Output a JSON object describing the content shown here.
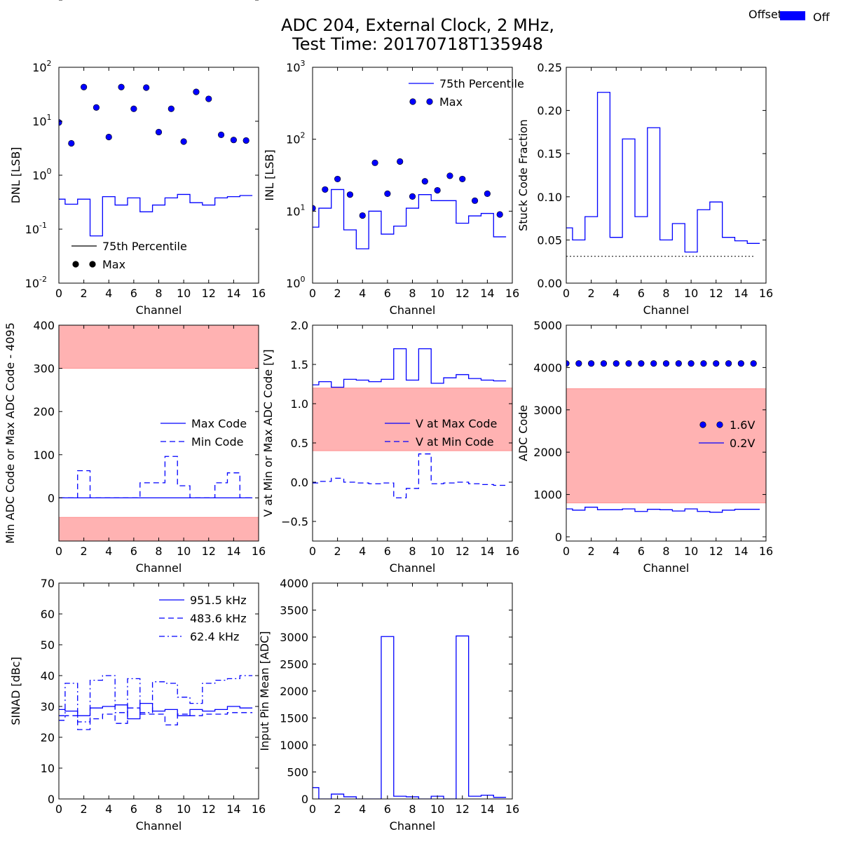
{
  "figure": {
    "title_line1": "ADC 204, External Clock, 2 MHz,",
    "title_line2": "Test Time: 20170718T135948",
    "top_legend": {
      "title": "Offset",
      "label": "Off",
      "color": "#0000ff"
    }
  },
  "chart_data": [
    {
      "id": "dnl",
      "type": "line",
      "xlabel": "Channel",
      "ylabel": "DNL [LSB]",
      "yscale": "log",
      "xlim": [
        0,
        16
      ],
      "ylim": [
        0.01,
        100
      ],
      "xticks": [
        "0",
        "2",
        "4",
        "6",
        "8",
        "10",
        "12",
        "14",
        "16"
      ],
      "yticks": [
        {
          "base": "10",
          "exp": "-2"
        },
        {
          "base": "10",
          "exp": "-1"
        },
        {
          "base": "10",
          "exp": "0"
        },
        {
          "base": "10",
          "exp": "1"
        },
        {
          "base": "10",
          "exp": "2"
        }
      ],
      "legend": {
        "position": "lower-left"
      },
      "series": [
        {
          "name": "75th Percentile",
          "style": "step",
          "dash": "solid",
          "legend_color": "#000000",
          "x": [
            0,
            1,
            2,
            3,
            4,
            5,
            6,
            7,
            8,
            9,
            10,
            11,
            12,
            13,
            14,
            15
          ],
          "values": [
            0.36,
            0.29,
            0.36,
            0.075,
            0.4,
            0.28,
            0.38,
            0.21,
            0.28,
            0.38,
            0.44,
            0.31,
            0.28,
            0.38,
            0.4,
            0.42
          ]
        },
        {
          "name": "Max",
          "style": "points",
          "legend_color": "#000000",
          "x": [
            0,
            1,
            2,
            3,
            4,
            5,
            6,
            7,
            8,
            9,
            10,
            11,
            12,
            13,
            14,
            15
          ],
          "values": [
            9.5,
            3.9,
            43,
            18,
            5.1,
            43,
            17,
            42,
            6.3,
            17,
            4.2,
            35,
            26,
            5.6,
            4.5,
            4.4
          ]
        }
      ]
    },
    {
      "id": "inl",
      "type": "line",
      "xlabel": "Channel",
      "ylabel": "INL [LSB]",
      "yscale": "log",
      "xlim": [
        0,
        16
      ],
      "ylim": [
        1,
        1000
      ],
      "xticks": [
        "0",
        "2",
        "4",
        "6",
        "8",
        "10",
        "12",
        "14",
        "16"
      ],
      "yticks": [
        {
          "base": "10",
          "exp": "0"
        },
        {
          "base": "10",
          "exp": "1"
        },
        {
          "base": "10",
          "exp": "2"
        },
        {
          "base": "10",
          "exp": "3"
        }
      ],
      "legend": {
        "position": "upper-right"
      },
      "series": [
        {
          "name": "75th Percentile",
          "style": "step",
          "dash": "solid",
          "x": [
            0,
            1,
            2,
            3,
            4,
            5,
            6,
            7,
            8,
            9,
            10,
            11,
            12,
            13,
            14,
            15
          ],
          "values": [
            6,
            11,
            20,
            5.5,
            3,
            10,
            4.8,
            6.2,
            11,
            17,
            14,
            14,
            6.8,
            8.6,
            9.3,
            4.4
          ]
        },
        {
          "name": "Max",
          "style": "points",
          "x": [
            0,
            1,
            2,
            3,
            4,
            5,
            6,
            7,
            8,
            9,
            10,
            11,
            12,
            13,
            14,
            15
          ],
          "values": [
            11,
            20,
            28,
            17,
            8.7,
            47,
            17.5,
            49,
            16,
            26,
            19.5,
            31,
            28,
            14,
            17.5,
            9
          ]
        }
      ]
    },
    {
      "id": "stuck",
      "type": "line",
      "xlabel": "Channel",
      "ylabel": "Stuck Code Fraction",
      "yscale": "linear",
      "xlim": [
        0,
        16
      ],
      "ylim": [
        0,
        0.25
      ],
      "xticks": [
        "0",
        "2",
        "4",
        "6",
        "8",
        "10",
        "12",
        "14",
        "16"
      ],
      "yticks": [
        "0.00",
        "0.05",
        "0.10",
        "0.15",
        "0.20",
        "0.25"
      ],
      "series": [
        {
          "style": "step",
          "dash": "solid",
          "x": [
            0,
            1,
            2,
            3,
            4,
            5,
            6,
            7,
            8,
            9,
            10,
            11,
            12,
            13,
            14,
            15
          ],
          "values": [
            0.064,
            0.05,
            0.077,
            0.221,
            0.053,
            0.167,
            0.077,
            0.18,
            0.05,
            0.069,
            0.036,
            0.085,
            0.094,
            0.053,
            0.049,
            0.046
          ]
        },
        {
          "style": "hline",
          "dash": "dotted",
          "y": 0.031,
          "x": [
            0,
            15
          ]
        }
      ]
    },
    {
      "id": "minmax",
      "type": "line",
      "xlabel": "Channel",
      "ylabel": "Min ADC Code or Max ADC Code - 4095",
      "yscale": "linear",
      "xlim": [
        0,
        16
      ],
      "ylim": [
        -100,
        400
      ],
      "xticks": [
        "0",
        "2",
        "4",
        "6",
        "8",
        "10",
        "12",
        "14",
        "16"
      ],
      "yticks": [
        "−100",
        "0",
        "100",
        "200",
        "300",
        "400"
      ],
      "bands": [
        [
          300,
          400
        ],
        [
          -100,
          -45
        ]
      ],
      "legend": {
        "position": "center-right"
      },
      "series": [
        {
          "name": "Max Code",
          "style": "step",
          "dash": "solid",
          "x": [
            0,
            1,
            2,
            3,
            4,
            5,
            6,
            7,
            8,
            9,
            10,
            11,
            12,
            13,
            14,
            15
          ],
          "values": [
            0,
            0,
            0,
            0,
            0,
            0,
            0,
            0,
            0,
            0,
            0,
            0,
            0,
            0,
            0,
            0
          ]
        },
        {
          "name": "Min Code",
          "style": "step",
          "dash": "dashed",
          "x": [
            0,
            1,
            2,
            3,
            4,
            5,
            6,
            7,
            8,
            9,
            10,
            11,
            12,
            13,
            14,
            15
          ],
          "values": [
            0,
            0,
            63,
            0,
            0,
            0,
            0,
            35,
            35,
            96,
            28,
            0,
            0,
            35,
            58,
            0
          ]
        }
      ]
    },
    {
      "id": "voltage",
      "type": "line",
      "xlabel": "Channel",
      "ylabel": "V at Min or Max ADC Code [V]",
      "yscale": "linear",
      "xlim": [
        0,
        16
      ],
      "ylim": [
        -0.75,
        2.0
      ],
      "xticks": [
        "0",
        "2",
        "4",
        "6",
        "8",
        "10",
        "12",
        "14",
        "16"
      ],
      "yticks": [
        "−0.5",
        "0.0",
        "0.5",
        "1.0",
        "1.5",
        "2.0"
      ],
      "yticks_values": [
        -0.5,
        0,
        0.5,
        1,
        1.5,
        2
      ],
      "bands": [
        [
          0.4,
          1.2
        ]
      ],
      "legend": {
        "position": "center-right"
      },
      "series": [
        {
          "name": "V at Max Code",
          "style": "step",
          "dash": "solid",
          "x": [
            0,
            1,
            2,
            3,
            4,
            5,
            6,
            7,
            8,
            9,
            10,
            11,
            12,
            13,
            14,
            15
          ],
          "values": [
            1.24,
            1.28,
            1.21,
            1.31,
            1.3,
            1.28,
            1.31,
            1.7,
            1.3,
            1.7,
            1.26,
            1.33,
            1.37,
            1.32,
            1.3,
            1.29
          ]
        },
        {
          "name": "V at Min Code",
          "style": "step",
          "dash": "dashed",
          "x": [
            0,
            1,
            2,
            3,
            4,
            5,
            6,
            7,
            8,
            9,
            10,
            11,
            12,
            13,
            14,
            15
          ],
          "values": [
            -0.01,
            0.01,
            0.05,
            0.0,
            -0.01,
            -0.02,
            -0.01,
            -0.2,
            -0.08,
            0.36,
            -0.02,
            -0.01,
            0.0,
            -0.02,
            -0.03,
            -0.04
          ]
        }
      ]
    },
    {
      "id": "adccode",
      "type": "line",
      "xlabel": "Channel",
      "ylabel": "ADC Code",
      "yscale": "linear",
      "xlim": [
        0,
        16
      ],
      "ylim": [
        -100,
        5000
      ],
      "xticks": [
        "0",
        "2",
        "4",
        "6",
        "8",
        "10",
        "12",
        "14",
        "16"
      ],
      "yticks": [
        "0",
        "1000",
        "2000",
        "3000",
        "4000",
        "5000"
      ],
      "yticks_values": [
        0,
        1000,
        2000,
        3000,
        4000,
        5000
      ],
      "bands": [
        [
          800,
          3500
        ]
      ],
      "legend": {
        "position": "center-right"
      },
      "series": [
        {
          "name": "1.6V",
          "style": "points",
          "x": [
            0,
            1,
            2,
            3,
            4,
            5,
            6,
            7,
            8,
            9,
            10,
            11,
            12,
            13,
            14,
            15
          ],
          "values": [
            4095,
            4095,
            4095,
            4095,
            4095,
            4095,
            4095,
            4095,
            4095,
            4095,
            4095,
            4095,
            4095,
            4095,
            4095,
            4095
          ]
        },
        {
          "name": "0.2V",
          "style": "step",
          "dash": "solid",
          "x": [
            0,
            1,
            2,
            3,
            4,
            5,
            6,
            7,
            8,
            9,
            10,
            11,
            12,
            13,
            14,
            15
          ],
          "values": [
            660,
            630,
            700,
            640,
            640,
            660,
            600,
            650,
            640,
            610,
            660,
            600,
            580,
            630,
            650,
            650
          ]
        }
      ]
    },
    {
      "id": "sinad",
      "type": "line",
      "xlabel": "Channel",
      "ylabel": "SINAD [dBc]",
      "yscale": "linear",
      "xlim": [
        0,
        16
      ],
      "ylim": [
        0,
        70
      ],
      "xticks": [
        "0",
        "2",
        "4",
        "6",
        "8",
        "10",
        "12",
        "14",
        "16"
      ],
      "yticks": [
        "0",
        "10",
        "20",
        "30",
        "40",
        "50",
        "60",
        "70"
      ],
      "yticks_values": [
        0,
        10,
        20,
        30,
        40,
        50,
        60,
        70
      ],
      "legend": {
        "position": "upper-right"
      },
      "series": [
        {
          "name": "951.5 kHz",
          "style": "step",
          "dash": "solid",
          "x": [
            0,
            1,
            2,
            3,
            4,
            5,
            6,
            7,
            8,
            9,
            10,
            11,
            12,
            13,
            14,
            15
          ],
          "values": [
            29,
            28.5,
            27,
            29.5,
            30,
            30.5,
            26,
            31,
            28.5,
            29,
            27,
            29,
            28.5,
            29,
            30,
            29.5
          ]
        },
        {
          "name": "483.6 kHz",
          "style": "step",
          "dash": "dashed",
          "x": [
            0,
            1,
            2,
            3,
            4,
            5,
            6,
            7,
            8,
            9,
            10,
            11,
            12,
            13,
            14,
            15
          ],
          "values": [
            25.5,
            27,
            22.5,
            26,
            27.5,
            24.5,
            29.5,
            27.5,
            27.5,
            24,
            27.5,
            27,
            27.5,
            27.5,
            28,
            28
          ]
        },
        {
          "name": "62.4 kHz",
          "style": "step",
          "dash": "dashdot",
          "x": [
            0,
            1,
            2,
            3,
            4,
            5,
            6,
            7,
            8,
            9,
            10,
            11,
            12,
            13,
            14,
            15
          ],
          "values": [
            27,
            37.5,
            25,
            38.5,
            40,
            28,
            39,
            28,
            38,
            37.5,
            33,
            31,
            37.5,
            38.5,
            39,
            40
          ]
        }
      ]
    },
    {
      "id": "pinmean",
      "type": "line",
      "xlabel": "Channel",
      "ylabel": "Input Pin Mean [ADC]",
      "yscale": "linear",
      "xlim": [
        0,
        16
      ],
      "ylim": [
        0,
        4000
      ],
      "xticks": [
        "0",
        "2",
        "4",
        "6",
        "8",
        "10",
        "12",
        "14",
        "16"
      ],
      "yticks": [
        "0",
        "500",
        "1000",
        "1500",
        "2000",
        "2500",
        "3000",
        "3500",
        "4000"
      ],
      "yticks_values": [
        0,
        500,
        1000,
        1500,
        2000,
        2500,
        3000,
        3500,
        4000
      ],
      "series": [
        {
          "style": "step",
          "dash": "solid",
          "x": [
            0,
            1,
            2,
            3,
            4,
            5,
            6,
            7,
            8,
            9,
            10,
            11,
            12,
            13,
            14,
            15
          ],
          "values": [
            210,
            0,
            90,
            40,
            0,
            0,
            3010,
            50,
            40,
            0,
            50,
            0,
            3020,
            50,
            70,
            30
          ]
        }
      ]
    }
  ]
}
